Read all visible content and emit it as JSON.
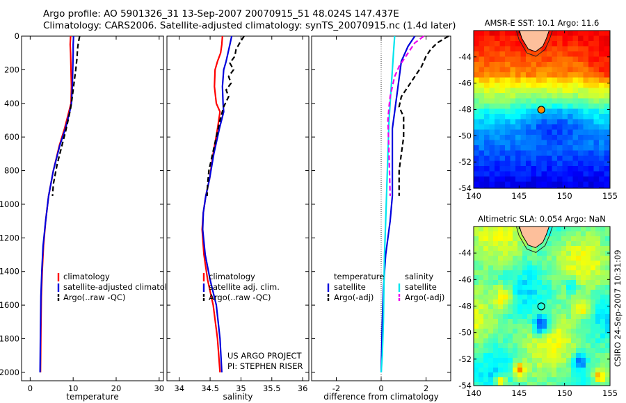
{
  "title": {
    "line1": "Argo profile: AO 5901326_31 13-Sep-2007 20070915_51 48.024S 147.437E",
    "line2": "Climatology: CARS2006. Satellite-adjusted climatology: synTS_20070915.nc (1.4d later)"
  },
  "credit": {
    "project": "US ARGO PROJECT",
    "pi": "PI: STEPHEN RISER",
    "stamp": "CSIRO 24-Sep-2007 10:31:09"
  },
  "colors": {
    "climatology": "#ff0000",
    "satellite": "#0000dd",
    "argo": "#000000",
    "sat_diff_salinity": "#00e5ee",
    "argo_diff_salinity": "#ee00ee"
  },
  "chart_data": [
    {
      "type": "line",
      "id": "temperature",
      "xlabel": "temperature",
      "ylabel": "",
      "xlim": [
        -2,
        31
      ],
      "ylim": [
        2050,
        0
      ],
      "xticks": [
        0,
        10,
        20,
        30
      ],
      "yticks": [
        0,
        200,
        400,
        600,
        800,
        1000,
        1200,
        1400,
        1600,
        1800,
        2000
      ],
      "legend": {
        "position": "lower-right",
        "entries": [
          "climatology",
          "satellite-adjusted climatology",
          "Argo(..raw -QC)"
        ]
      },
      "series": [
        {
          "name": "climatology",
          "color": "#ff0000",
          "dash": "solid",
          "x": [
            9.4,
            9.3,
            9.4,
            9.5,
            9.6,
            9.5,
            9.0,
            8.0,
            6.8,
            5.4,
            4.3,
            3.6,
            3.1,
            2.8,
            2.6,
            2.5,
            2.4
          ],
          "y": [
            0,
            50,
            100,
            200,
            300,
            400,
            450,
            550,
            650,
            800,
            950,
            1100,
            1250,
            1400,
            1550,
            1750,
            2000
          ]
        },
        {
          "name": "satellite-adjusted climatology",
          "color": "#0000dd",
          "dash": "solid",
          "x": [
            10.1,
            10.0,
            10.0,
            9.9,
            9.8,
            9.6,
            9.2,
            8.2,
            6.9,
            5.4,
            4.3,
            3.6,
            3.0,
            2.7,
            2.5,
            2.4,
            2.3
          ],
          "y": [
            0,
            50,
            100,
            200,
            300,
            400,
            450,
            550,
            650,
            800,
            950,
            1100,
            1250,
            1400,
            1550,
            1750,
            2000
          ]
        },
        {
          "name": "Argo(..raw -QC)",
          "color": "#000000",
          "dash": "dashed",
          "x": [
            11.5,
            11.2,
            11.0,
            10.9,
            10.6,
            10.3,
            10.0,
            9.7,
            9.4,
            9.0,
            8.3,
            7.4,
            6.3,
            5.4,
            5.2
          ],
          "y": [
            0,
            40,
            80,
            130,
            200,
            260,
            320,
            380,
            430,
            480,
            560,
            650,
            760,
            880,
            950
          ]
        }
      ]
    },
    {
      "type": "line",
      "id": "salinity",
      "xlabel": "salinity",
      "ylabel": "",
      "xlim": [
        33.8,
        36.1
      ],
      "ylim": [
        2050,
        0
      ],
      "xticks": [
        34,
        34.5,
        35,
        35.5,
        36
      ],
      "yticks": [
        0,
        200,
        400,
        600,
        800,
        1000,
        1200,
        1400,
        1600,
        1800,
        2000
      ],
      "legend": {
        "position": "lower-right",
        "entries": [
          "climatology",
          "satellite adj. clim.",
          "Argo(..raw -QC)"
        ]
      },
      "series": [
        {
          "name": "climatology",
          "color": "#ff0000",
          "dash": "solid",
          "x": [
            34.7,
            34.69,
            34.67,
            34.62,
            34.58,
            34.57,
            34.6,
            34.66,
            34.62,
            34.55,
            34.49,
            34.43,
            34.39,
            34.37,
            34.4,
            34.46,
            34.55,
            34.62,
            34.66
          ],
          "y": [
            0,
            50,
            100,
            150,
            200,
            300,
            400,
            450,
            550,
            700,
            850,
            950,
            1050,
            1150,
            1300,
            1450,
            1600,
            1800,
            2000
          ]
        },
        {
          "name": "satellite adj. clim.",
          "color": "#0000dd",
          "dash": "solid",
          "x": [
            34.85,
            34.82,
            34.79,
            34.76,
            34.72,
            34.7,
            34.71,
            34.72,
            34.65,
            34.56,
            34.49,
            34.43,
            34.39,
            34.38,
            34.42,
            34.5,
            34.6,
            34.66,
            34.69
          ],
          "y": [
            0,
            50,
            100,
            150,
            200,
            300,
            400,
            450,
            550,
            700,
            850,
            950,
            1050,
            1150,
            1300,
            1450,
            1600,
            1800,
            2000
          ]
        },
        {
          "name": "Argo(..raw -QC)",
          "color": "#000000",
          "dash": "dashed",
          "x": [
            35.05,
            34.98,
            34.92,
            34.9,
            34.82,
            34.88,
            34.8,
            34.84,
            34.76,
            34.8,
            34.72,
            34.66,
            34.6,
            34.54,
            34.48,
            34.46,
            34.45
          ],
          "y": [
            0,
            40,
            80,
            120,
            160,
            200,
            240,
            280,
            320,
            360,
            420,
            500,
            600,
            700,
            800,
            880,
            950
          ]
        }
      ]
    },
    {
      "type": "line",
      "id": "difference",
      "xlabel": "difference from climatology",
      "ylabel": "",
      "xlim": [
        -3.1,
        3.1
      ],
      "ylim": [
        2050,
        0
      ],
      "xticks": [
        -2,
        0,
        2
      ],
      "yticks": [
        0,
        200,
        400,
        600,
        800,
        1000,
        1200,
        1400,
        1600,
        1800,
        2000
      ],
      "legend": {
        "position": "lower-center",
        "groups": [
          "temperature",
          "salinity"
        ],
        "entries": [
          "satellite",
          "Argo(-adj)",
          "satellite",
          "Argo(-adj)"
        ]
      },
      "series": [
        {
          "name": "satellite (temperature)",
          "color": "#0000dd",
          "dash": "solid",
          "x": [
            1.5,
            1.2,
            0.9,
            0.8,
            0.7,
            0.6,
            0.5,
            0.5,
            0.5,
            0.5,
            0.4,
            0.2,
            0.1,
            0.05,
            0.0
          ],
          "y": [
            0,
            60,
            150,
            250,
            350,
            450,
            550,
            650,
            800,
            950,
            1100,
            1300,
            1500,
            1700,
            2000
          ]
        },
        {
          "name": "Argo(-adj) (temperature)",
          "color": "#000000",
          "dash": "dashed",
          "x": [
            3.0,
            2.5,
            2.2,
            2.0,
            1.8,
            1.5,
            1.2,
            0.9,
            0.8,
            1.0,
            1.0,
            0.9,
            0.8,
            0.8
          ],
          "y": [
            0,
            40,
            80,
            120,
            180,
            240,
            300,
            360,
            420,
            480,
            600,
            700,
            800,
            950
          ]
        },
        {
          "name": "satellite (salinity)",
          "color": "#00e5ee",
          "dash": "solid",
          "x": [
            0.6,
            0.55,
            0.5,
            0.4,
            0.35,
            0.3,
            0.25,
            0.2,
            0.15,
            0.12,
            0.1,
            0.05,
            0.0
          ],
          "y": [
            0,
            100,
            200,
            400,
            500,
            700,
            900,
            1100,
            1300,
            1500,
            1700,
            1900,
            2000
          ]
        },
        {
          "name": "Argo(-adj) (salinity)",
          "color": "#ee00ee",
          "dash": "dashed",
          "x": [
            1.9,
            1.5,
            1.3,
            1.1,
            0.8,
            0.6,
            0.5,
            0.4,
            0.35,
            0.3,
            0.35,
            0.4
          ],
          "y": [
            0,
            40,
            80,
            120,
            180,
            240,
            300,
            360,
            420,
            500,
            700,
            950
          ]
        }
      ]
    },
    {
      "type": "heatmap",
      "id": "sst-map",
      "title": "AMSR-E SST: 10.1 Argo: 11.6",
      "xlim": [
        140,
        155
      ],
      "ylim": [
        -54,
        -42
      ],
      "xticks": [
        140,
        145,
        150,
        155
      ],
      "yticks": [
        -54,
        -52,
        -50,
        -48,
        -46,
        -44
      ],
      "colormap": "jet",
      "argo_position": {
        "lon": 147.437,
        "lat": -48.024
      }
    },
    {
      "type": "heatmap",
      "id": "sla-map",
      "title": "Altimetric SLA: 0.054 Argo: NaN",
      "xlim": [
        140,
        155
      ],
      "ylim": [
        -54,
        -42
      ],
      "xticks": [
        140,
        145,
        150,
        155
      ],
      "yticks": [
        -54,
        -52,
        -50,
        -48,
        -46,
        -44
      ],
      "colormap": "jet",
      "argo_position": {
        "lon": 147.437,
        "lat": -48.024
      }
    }
  ]
}
